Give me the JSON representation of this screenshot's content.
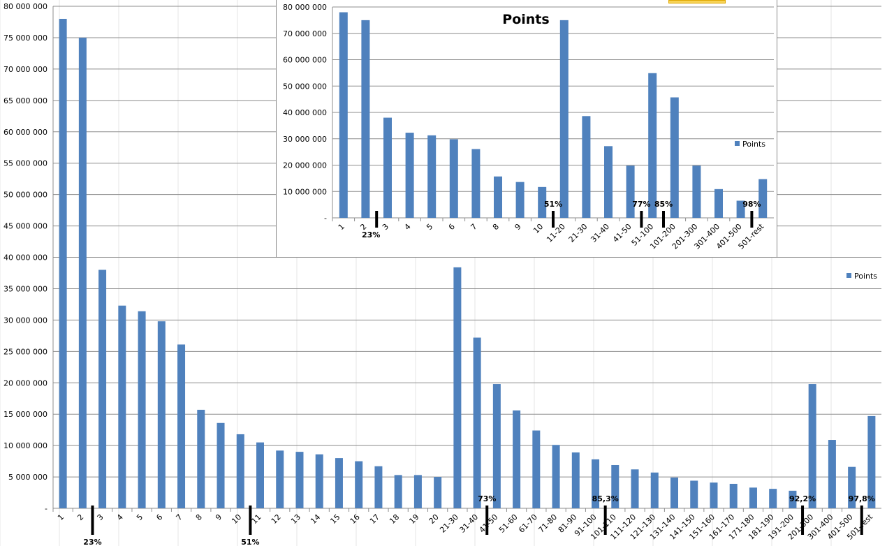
{
  "chart_data": [
    {
      "type": "bar",
      "title": "",
      "xlabel": "",
      "ylabel": "",
      "ylim": [
        0,
        80000000
      ],
      "y_ticks": [
        "-",
        "5 000 000",
        "10 000 000",
        "15 000 000",
        "20 000 000",
        "25 000 000",
        "30 000 000",
        "35 000 000",
        "40 000 000",
        "45 000 000",
        "50 000 000",
        "55 000 000",
        "60 000 000",
        "65 000 000",
        "70 000 000",
        "75 000 000",
        "80 000 000"
      ],
      "grid": true,
      "legend": {
        "position": "right",
        "entries": [
          "Points"
        ]
      },
      "categories": [
        "1",
        "2",
        "3",
        "4",
        "5",
        "6",
        "7",
        "8",
        "9",
        "10",
        "11",
        "12",
        "13",
        "14",
        "15",
        "16",
        "17",
        "18",
        "19",
        "20",
        "21-30",
        "31-40",
        "41-50",
        "51-60",
        "61-70",
        "71-80",
        "81-90",
        "91-100",
        "101-110",
        "111-120",
        "121-130",
        "131-140",
        "141-150",
        "151-160",
        "161-170",
        "171-180",
        "181-190",
        "191-200",
        "201-300",
        "301-400",
        "401-500",
        "501-rest"
      ],
      "series": [
        {
          "name": "Points",
          "color": "#4f81bd",
          "values": [
            78000000,
            75000000,
            38000000,
            32300000,
            31400000,
            29800000,
            26100000,
            15700000,
            13600000,
            11800000,
            10500000,
            9200000,
            9000000,
            8600000,
            8000000,
            7500000,
            6700000,
            5300000,
            5300000,
            5000000,
            38400000,
            27200000,
            19800000,
            15600000,
            12400000,
            10100000,
            8900000,
            7800000,
            6900000,
            6200000,
            5700000,
            4900000,
            4400000,
            4100000,
            3900000,
            3300000,
            3100000,
            2800000,
            19800000,
            10900000,
            6600000,
            14700000
          ]
        }
      ],
      "annotations": [
        {
          "text": "23%",
          "after_category": "2"
        },
        {
          "text": "51%",
          "after_category": "10"
        },
        {
          "text": "73%",
          "after_category": "31-40"
        },
        {
          "text": "85,3%",
          "after_category": "91-100"
        },
        {
          "text": "92,2%",
          "after_category": "191-200"
        },
        {
          "text": "97,8%",
          "after_category": "401-500"
        }
      ]
    },
    {
      "type": "bar",
      "title": "Points",
      "xlabel": "",
      "ylabel": "",
      "ylim": [
        0,
        80000000
      ],
      "y_ticks": [
        "-",
        "10 000 000",
        "20 000 000",
        "30 000 000",
        "40 000 000",
        "50 000 000",
        "60 000 000",
        "70 000 000",
        "80 000 000"
      ],
      "grid": true,
      "legend": {
        "position": "right",
        "entries": [
          "Points"
        ]
      },
      "categories": [
        "1",
        "2",
        "3",
        "4",
        "5",
        "6",
        "7",
        "8",
        "9",
        "10",
        "11-20",
        "21-30",
        "31-40",
        "41-50",
        "51-100",
        "101-200",
        "201-300",
        "301-400",
        "401-500",
        "501-rest"
      ],
      "series": [
        {
          "name": "Points",
          "color": "#4f81bd",
          "values": [
            78000000,
            75000000,
            38000000,
            32300000,
            31300000,
            29800000,
            26100000,
            15700000,
            13600000,
            11700000,
            75000000,
            38600000,
            27200000,
            19800000,
            54900000,
            45700000,
            19800000,
            10900000,
            6500000,
            14700000
          ]
        }
      ],
      "annotations": [
        {
          "text": "23%",
          "after_category": "2"
        },
        {
          "text": "51%",
          "after_category": "10"
        },
        {
          "text": "77%",
          "after_category": "41-50"
        },
        {
          "text": "85%",
          "after_category": "51-100"
        },
        {
          "text": "98%",
          "after_category": "401-500"
        }
      ]
    }
  ]
}
